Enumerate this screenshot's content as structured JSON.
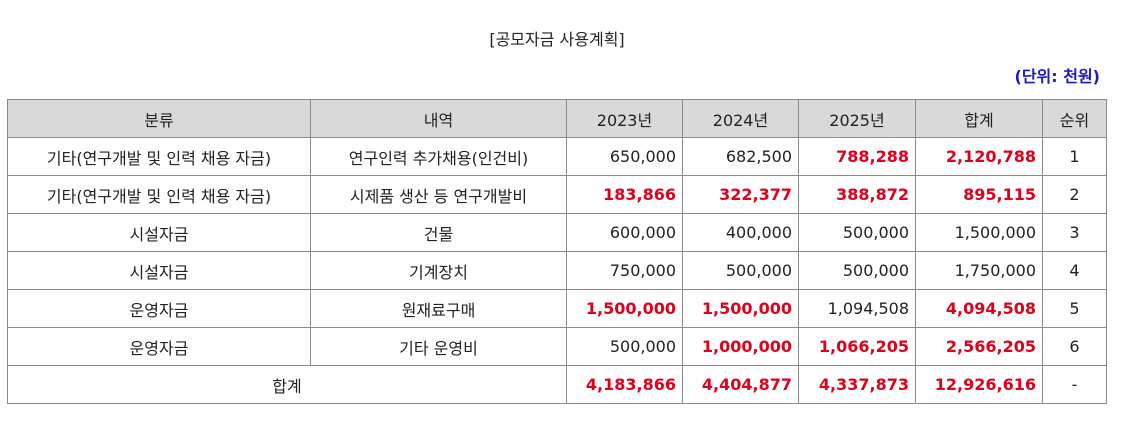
{
  "title": "[공모자금 사용계획]",
  "unit": "(단위: 천원)",
  "headers": [
    "분류",
    "내역",
    "2023년",
    "2024년",
    "2025년",
    "합계",
    "순위"
  ],
  "rows": [
    {
      "category": "기타(연구개발 및 인력 채용 자금)",
      "detail": "연구인력 추가채용(인건비)",
      "y2023": "650,000",
      "y2024": "682,500",
      "y2025": "788,288",
      "total": "2,120,788",
      "rank": "1"
    },
    {
      "category": "기타(연구개발 및 인력 채용 자금)",
      "detail": "시제품 생산 등 연구개발비",
      "y2023": "183,866",
      "y2024": "322,377",
      "y2025": "388,872",
      "total": "895,115",
      "rank": "2"
    },
    {
      "category": "시설자금",
      "detail": "건물",
      "y2023": "600,000",
      "y2024": "400,000",
      "y2025": "500,000",
      "total": "1,500,000",
      "rank": "3"
    },
    {
      "category": "시설자금",
      "detail": "기계장치",
      "y2023": "750,000",
      "y2024": "500,000",
      "y2025": "500,000",
      "total": "1,750,000",
      "rank": "4"
    },
    {
      "category": "운영자금",
      "detail": "원재료구매",
      "y2023": "1,500,000",
      "y2024": "1,500,000",
      "y2025": "1,094,508",
      "total": "4,094,508",
      "rank": "5"
    },
    {
      "category": "운영자금",
      "detail": "기타 운영비",
      "y2023": "500,000",
      "y2024": "1,000,000",
      "y2025": "1,066,205",
      "total": "2,566,205",
      "rank": "6"
    }
  ],
  "totals": {
    "label": "합계",
    "y2023": "4,183,866",
    "y2024": "4,404,877",
    "y2025": "4,337,873",
    "total": "12,926,616",
    "rank": "-"
  },
  "colors": {
    "highlight": "#e0001b",
    "unit": "#1a1ac8",
    "header_bg": "#d9d9d9"
  }
}
